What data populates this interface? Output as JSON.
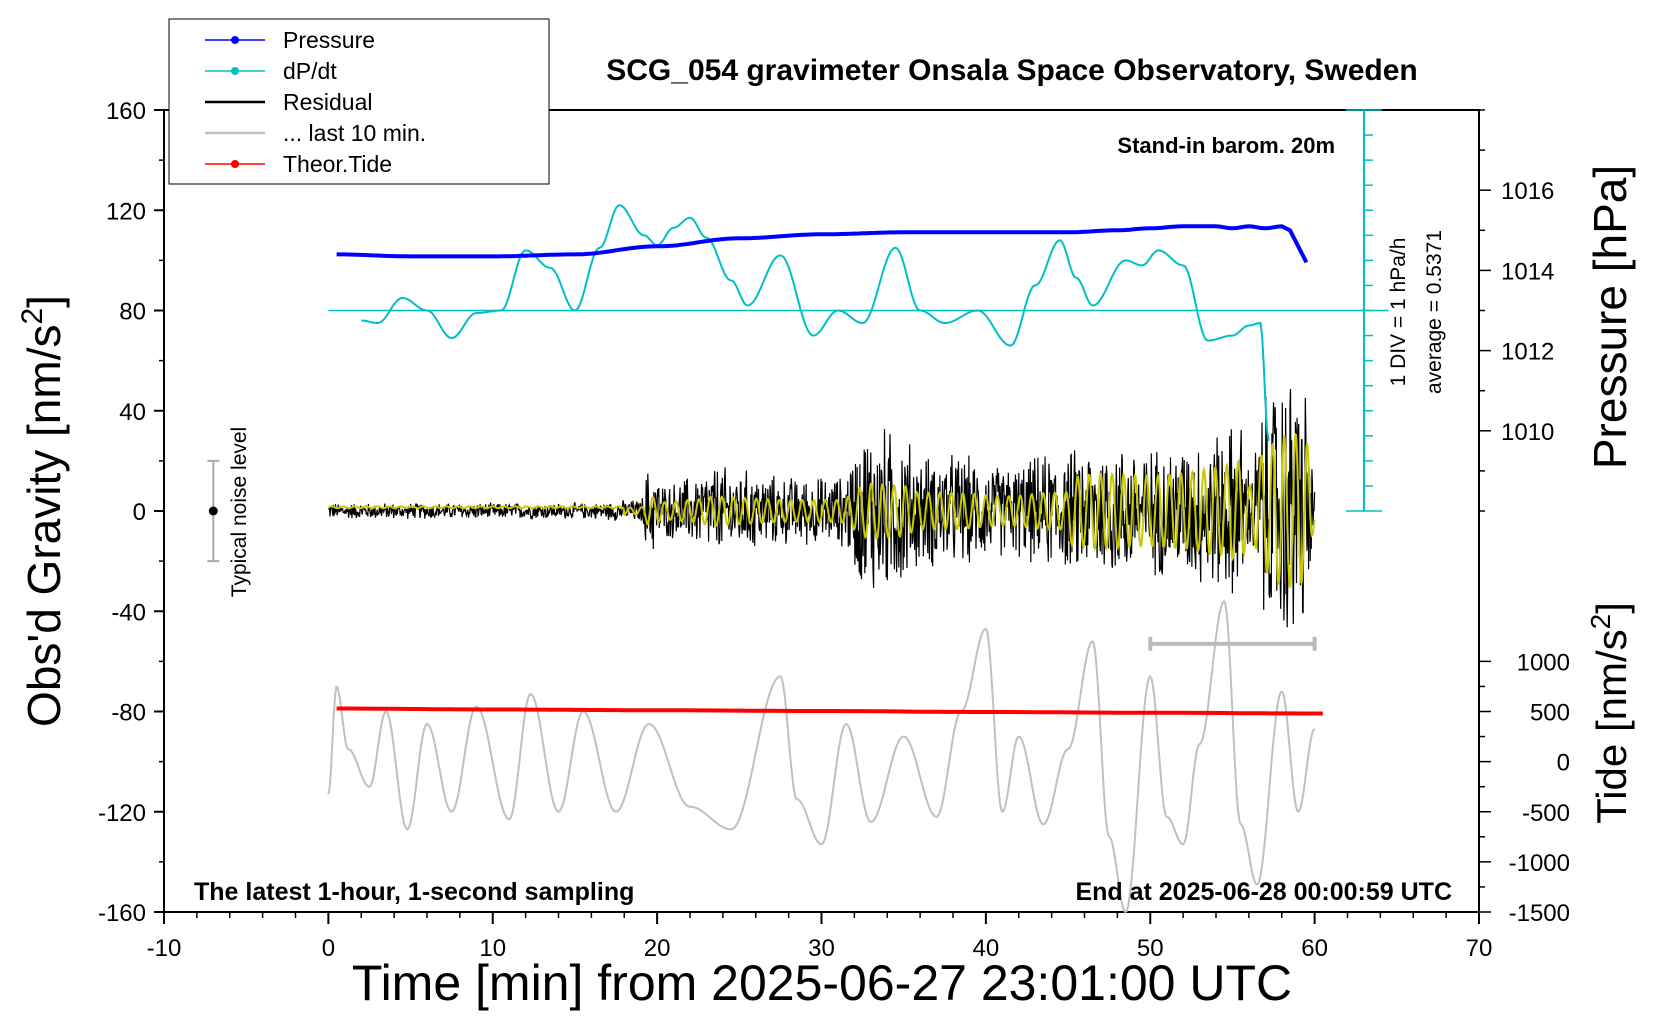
{
  "chart_data": {
    "type": "line",
    "title": "SCG_054 gravimeter Onsala Space Observatory, Sweden",
    "xlabel": "Time [min] from 2025-06-27 23:01:00 UTC",
    "ylabel_left": "Obs'd Gravity [nm/s",
    "ylabel_left_sup": "2",
    "ylabel_left_end": "]",
    "ylabel_pressure": "Pressure [hPa]",
    "ylabel_tide": "Tide [nm/s",
    "ylabel_tide_sup": "2",
    "ylabel_tide_end": "]",
    "xlim": [
      -10,
      70
    ],
    "ylim": [
      -160,
      160
    ],
    "x_ticks": [
      -10,
      0,
      10,
      20,
      30,
      40,
      50,
      60,
      70
    ],
    "y_ticks": [
      -160,
      -120,
      -80,
      -40,
      0,
      40,
      80,
      120,
      160
    ],
    "pressure_axis": {
      "range": [
        1008.0,
        1018.0
      ],
      "ticks": [
        1010,
        1012,
        1014,
        1016
      ]
    },
    "tide_axis": {
      "range": [
        -1500,
        1500
      ],
      "ticks": [
        -1500,
        -1000,
        -500,
        0,
        500,
        1000
      ]
    },
    "annotations": {
      "barometer": "Stand-in barom. 20m",
      "scale": "1 DIV = 1 hPa/h",
      "average": "average = 0.5371",
      "noise": "Typical noise level",
      "sampling": "The latest 1-hour, 1-second sampling",
      "end_time": "End at 2025-06-28 00:00:59 UTC"
    },
    "legend": [
      {
        "name": "Pressure",
        "color": "#0000ff",
        "marker": true
      },
      {
        "name": "dP/dt",
        "color": "#00bfc4",
        "marker": true
      },
      {
        "name": "Residual",
        "color": "#000000",
        "marker": false
      },
      {
        "name": "... last 10 min.",
        "color": "#c0c0c0",
        "marker": false
      },
      {
        "name": "Theor.Tide",
        "color": "#ff0000",
        "marker": true
      }
    ],
    "dpdt_baseline_gravity": 80,
    "noise_level": {
      "x": -7,
      "center": 0,
      "half_range": 20
    },
    "last10_bar": {
      "x_start": 50,
      "x_end": 60,
      "gravity": -53
    },
    "series": [
      {
        "name": "Pressure",
        "units": "hPa",
        "color": "#0000ff",
        "x": [
          0.5,
          5,
          10,
          15,
          20,
          25,
          30,
          35,
          40,
          45,
          48,
          50,
          52,
          54,
          55,
          56,
          57,
          58,
          58.5,
          59,
          59.5
        ],
        "values": [
          1014.4,
          1014.35,
          1014.35,
          1014.4,
          1014.6,
          1014.8,
          1014.9,
          1014.95,
          1014.95,
          1014.95,
          1015.0,
          1015.05,
          1015.1,
          1015.1,
          1015.05,
          1015.1,
          1015.05,
          1015.1,
          1015.0,
          1014.6,
          1014.2
        ]
      },
      {
        "name": "dP/dt",
        "units": "nm/s2 plot scale",
        "color": "#00bfc4",
        "x": [
          2,
          3,
          4.5,
          6,
          7.5,
          9,
          10.5,
          12,
          13.5,
          15,
          16.5,
          17.7,
          19.2,
          20,
          21,
          22,
          23,
          24.5,
          25.5,
          27.5,
          29.5,
          31,
          32.5,
          34.5,
          36,
          37.5,
          39.5,
          41.5,
          43,
          44.5,
          45.5,
          46.5,
          48.5,
          49.5,
          50.5,
          52,
          53.5,
          55,
          56,
          56.7,
          57.2
        ],
        "values": [
          76,
          75,
          85,
          80,
          69,
          79,
          80,
          104,
          97,
          80,
          105,
          122,
          110,
          106,
          113,
          117,
          109,
          92,
          82,
          102,
          70,
          80,
          75,
          105,
          80,
          75,
          80,
          66,
          90,
          108,
          93,
          82,
          100,
          98,
          104,
          98,
          68,
          70,
          74,
          75,
          28
        ]
      },
      {
        "name": "Residual",
        "units": "nm/s2",
        "color": "#000000",
        "x": [
          0,
          5,
          10,
          15,
          19,
          19.5,
          20.5,
          22,
          23.5,
          25,
          28,
          31,
          33,
          34.8,
          36,
          38,
          41,
          44,
          47,
          50,
          52,
          54,
          55.5,
          56,
          57,
          58,
          58.8,
          59.5,
          60
        ],
        "values": [
          0,
          3,
          -2,
          3,
          -5,
          -20,
          12,
          -15,
          20,
          -18,
          15,
          -15,
          38,
          -35,
          25,
          -25,
          20,
          -25,
          30,
          -28,
          30,
          -35,
          40,
          -20,
          50,
          -60,
          62,
          -55,
          10
        ]
      },
      {
        "name": "... last 10 min.",
        "units": "nm/s2",
        "color": "#c0c0c0",
        "x": [
          0,
          0.5,
          1.2,
          2.5,
          3.5,
          4.8,
          6,
          7.5,
          9,
          11,
          12.3,
          14,
          15.5,
          17.5,
          19.5,
          22,
          24.5,
          27.5,
          28.5,
          30,
          31.5,
          33,
          35,
          37,
          38.5,
          40,
          41,
          42,
          43.5,
          45,
          46.5,
          47.5,
          48.5,
          50,
          51,
          52,
          53,
          54.5,
          55.5,
          56.5,
          58,
          59,
          60
        ],
        "values": [
          -113,
          -70,
          -95,
          -110,
          -80,
          -127,
          -85,
          -120,
          -78,
          -123,
          -73,
          -120,
          -80,
          -120,
          -85,
          -118,
          -127,
          -66,
          -115,
          -133,
          -85,
          -124,
          -90,
          -122,
          -80,
          -47,
          -120,
          -90,
          -125,
          -95,
          -52,
          -130,
          -160,
          -66,
          -122,
          -133,
          -93,
          -36,
          -125,
          -149,
          -72,
          -120,
          -87
        ]
      },
      {
        "name": "Theor.Tide",
        "units": "nm/s2 plot scale",
        "color": "#ff0000",
        "x": [
          0.5,
          10,
          20,
          30,
          40,
          50,
          60.5
        ],
        "values": [
          -78.8,
          -79.2,
          -79.5,
          -79.8,
          -80.2,
          -80.5,
          -80.8
        ]
      }
    ]
  }
}
